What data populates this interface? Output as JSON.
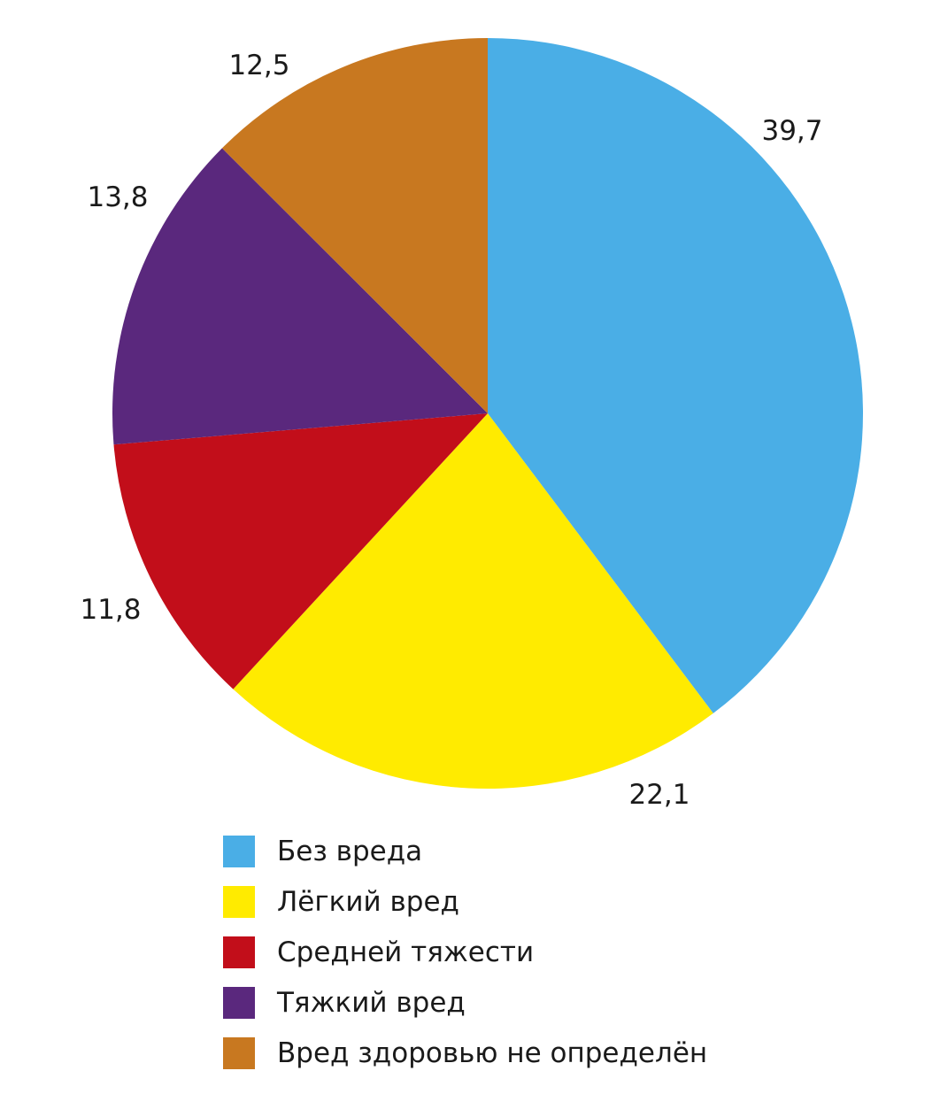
{
  "chart_data": {
    "type": "pie",
    "title": "",
    "start_angle": "top",
    "direction": "clockwise",
    "slices": [
      {
        "name": "Без вреда",
        "value": 39.7,
        "label": "39,7",
        "color": "#4AAEE6"
      },
      {
        "name": "Лёгкий вред",
        "value": 22.1,
        "label": "22,1",
        "color": "#FFEB00"
      },
      {
        "name": "Средней тяжести",
        "value": 11.8,
        "label": "11,8",
        "color": "#C20E1A"
      },
      {
        "name": "Тяжкий вред",
        "value": 13.8,
        "label": "13,8",
        "color": "#5A287D"
      },
      {
        "name": "Вред здоровью не определён",
        "value": 12.5,
        "label": "12,5",
        "color": "#C87820"
      }
    ],
    "legend_placement": "bottom"
  }
}
